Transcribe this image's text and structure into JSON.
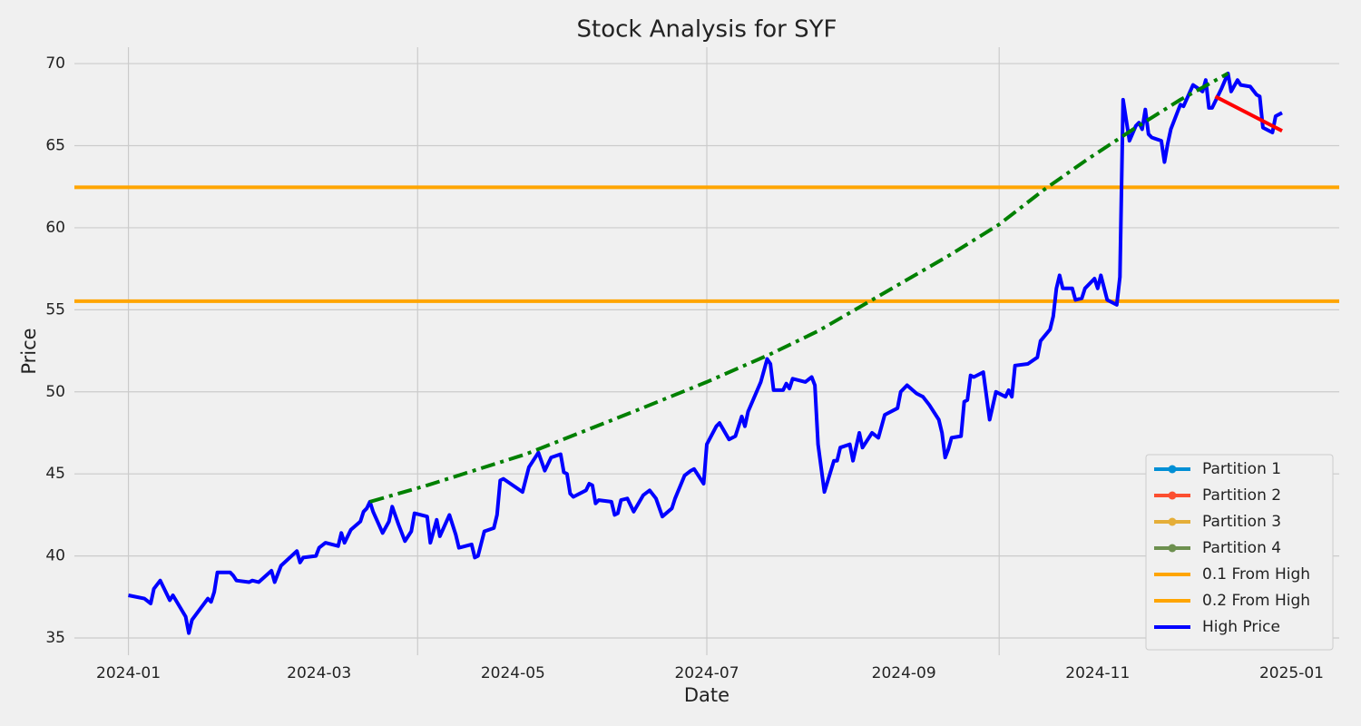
{
  "chart_data": {
    "type": "line",
    "title": "Stock Analysis for SYF",
    "x_label": "Date",
    "y_label": "Price",
    "xlim": [
      -17,
      381
    ],
    "xticks": [
      {
        "value": 0,
        "label": "2024-01"
      },
      {
        "value": 60,
        "label": "2024-03"
      },
      {
        "value": 121,
        "label": "2024-05"
      },
      {
        "value": 182,
        "label": "2024-07"
      },
      {
        "value": 244,
        "label": "2024-09"
      },
      {
        "value": 305,
        "label": "2024-11"
      },
      {
        "value": 366,
        "label": "2025-01"
      }
    ],
    "xgrid": [
      0,
      91,
      182,
      274
    ],
    "ylim": [
      33.95,
      71.0
    ],
    "yticks": [
      35,
      40,
      45,
      50,
      55,
      60,
      65,
      70
    ],
    "grid": true,
    "legend": "lower right",
    "series": [
      {
        "name": "Partition 1",
        "color": "#008fd5",
        "marker": "o"
      },
      {
        "name": "Partition 2",
        "color": "#fc4f30",
        "marker": "o"
      },
      {
        "name": "Partition 3",
        "color": "#e5ae38",
        "marker": "o"
      },
      {
        "name": "Partition 4",
        "color": "#6d904f",
        "marker": "o"
      },
      {
        "name": "0.1 From High",
        "color": "#ffa500",
        "y": 62.46
      },
      {
        "name": "0.2 From High",
        "color": "#ffa500",
        "y": 55.52
      },
      {
        "name": "High Price",
        "color": "#0000ff",
        "x": [
          0,
          5,
          7,
          8,
          10,
          13,
          14,
          18,
          19,
          20,
          25,
          26,
          27,
          28,
          32,
          33,
          34,
          38,
          39,
          41,
          45,
          46,
          48,
          53,
          54,
          55,
          59,
          60,
          62,
          66,
          67,
          68,
          70,
          73,
          74,
          75,
          76,
          77,
          80,
          82,
          83,
          85,
          87,
          89,
          90,
          94,
          95,
          97,
          98,
          101,
          103,
          104,
          108,
          109,
          110,
          112,
          115,
          116,
          117,
          118,
          124,
          126,
          129,
          131,
          133,
          136,
          137,
          138,
          139,
          140,
          144,
          145,
          146,
          147,
          148,
          152,
          153,
          154,
          155,
          157,
          159,
          162,
          164,
          166,
          168,
          171,
          172,
          175,
          177,
          178,
          181,
          182,
          185,
          186,
          189,
          191,
          193,
          194,
          195,
          199,
          201,
          202,
          203,
          206,
          207,
          208,
          209,
          213,
          215,
          216,
          217,
          219,
          222,
          223,
          224,
          227,
          228,
          230,
          231,
          234,
          236,
          238,
          242,
          243,
          245,
          248,
          250,
          252,
          255,
          256,
          257,
          258,
          259,
          262,
          263,
          264,
          265,
          266,
          269,
          271,
          273,
          276,
          277,
          278,
          279,
          283,
          286,
          287,
          290,
          291,
          292,
          293,
          294,
          297,
          298,
          300,
          301,
          304,
          305,
          306,
          308,
          311,
          312,
          313,
          315,
          317,
          318,
          319,
          320,
          321,
          322,
          325,
          326,
          327,
          328,
          331,
          332,
          335,
          338,
          339,
          340,
          341,
          344,
          346,
          347,
          349,
          350,
          353,
          355,
          356,
          357,
          360,
          361,
          363
        ],
        "values": [
          37.6,
          37.4,
          37.1,
          38.0,
          38.5,
          37.3,
          37.6,
          36.3,
          35.3,
          36.1,
          37.4,
          37.2,
          37.8,
          39.0,
          39.0,
          38.8,
          38.5,
          38.4,
          38.5,
          38.4,
          39.1,
          38.4,
          39.4,
          40.3,
          39.6,
          39.9,
          40.0,
          40.5,
          40.8,
          40.6,
          41.4,
          40.8,
          41.6,
          42.1,
          42.7,
          42.9,
          43.3,
          42.7,
          41.4,
          42.1,
          43.0,
          41.9,
          40.9,
          41.5,
          42.6,
          42.4,
          40.8,
          42.2,
          41.2,
          42.5,
          41.3,
          40.5,
          40.7,
          39.9,
          40.0,
          41.5,
          41.7,
          42.5,
          44.6,
          44.7,
          43.9,
          45.4,
          46.3,
          45.2,
          46.0,
          46.2,
          45.1,
          45.0,
          43.8,
          43.6,
          44.0,
          44.4,
          44.3,
          43.2,
          43.4,
          43.3,
          42.5,
          42.6,
          43.4,
          43.5,
          42.7,
          43.7,
          44.0,
          43.5,
          42.4,
          42.9,
          43.5,
          44.9,
          45.2,
          45.3,
          44.4,
          46.8,
          47.9,
          48.1,
          47.1,
          47.3,
          48.5,
          47.9,
          48.8,
          50.6,
          52.0,
          51.7,
          50.1,
          50.1,
          50.5,
          50.2,
          50.8,
          50.6,
          50.9,
          50.4,
          46.8,
          43.9,
          45.8,
          45.8,
          46.6,
          46.8,
          45.8,
          47.5,
          46.6,
          47.5,
          47.2,
          48.6,
          49.0,
          50.0,
          50.4,
          49.9,
          49.7,
          49.2,
          48.3,
          47.5,
          46.0,
          46.5,
          47.2,
          47.3,
          49.4,
          49.5,
          51.0,
          50.9,
          51.2,
          48.3,
          50.0,
          49.7,
          50.1,
          49.7,
          51.6,
          51.7,
          52.1,
          53.1,
          53.8,
          54.6,
          56.3,
          57.1,
          56.3,
          56.3,
          55.6,
          55.7,
          56.3,
          56.9,
          56.3,
          57.1,
          55.6,
          55.3,
          57.0,
          67.8,
          65.3,
          66.2,
          66.4,
          66.0,
          67.2,
          65.7,
          65.5,
          65.3,
          64.0,
          65.1,
          66.0,
          67.5,
          67.4,
          68.7,
          68.3,
          69.0,
          67.3,
          67.3,
          68.5,
          69.4,
          68.3,
          69.0,
          68.7,
          68.6,
          68.1,
          68.0,
          66.1,
          65.8,
          66.8,
          67.0
        ]
      }
    ],
    "trend_lines": [
      {
        "color": "#008000",
        "dash": "dashdot",
        "x": [
          76,
          94,
          125,
          159,
          182,
          202,
          217,
          234,
          259,
          274,
          288,
          302,
          317,
          331,
          346
        ],
        "values": [
          43.3,
          44.3,
          46.2,
          48.8,
          50.6,
          52.3,
          53.7,
          55.6,
          58.4,
          60.2,
          62.3,
          64.2,
          66.1,
          67.8,
          69.4
        ]
      },
      {
        "color": "#ff0000",
        "dash": "solid",
        "x": [
          342,
          363
        ],
        "values": [
          68.0,
          65.9
        ]
      }
    ]
  }
}
